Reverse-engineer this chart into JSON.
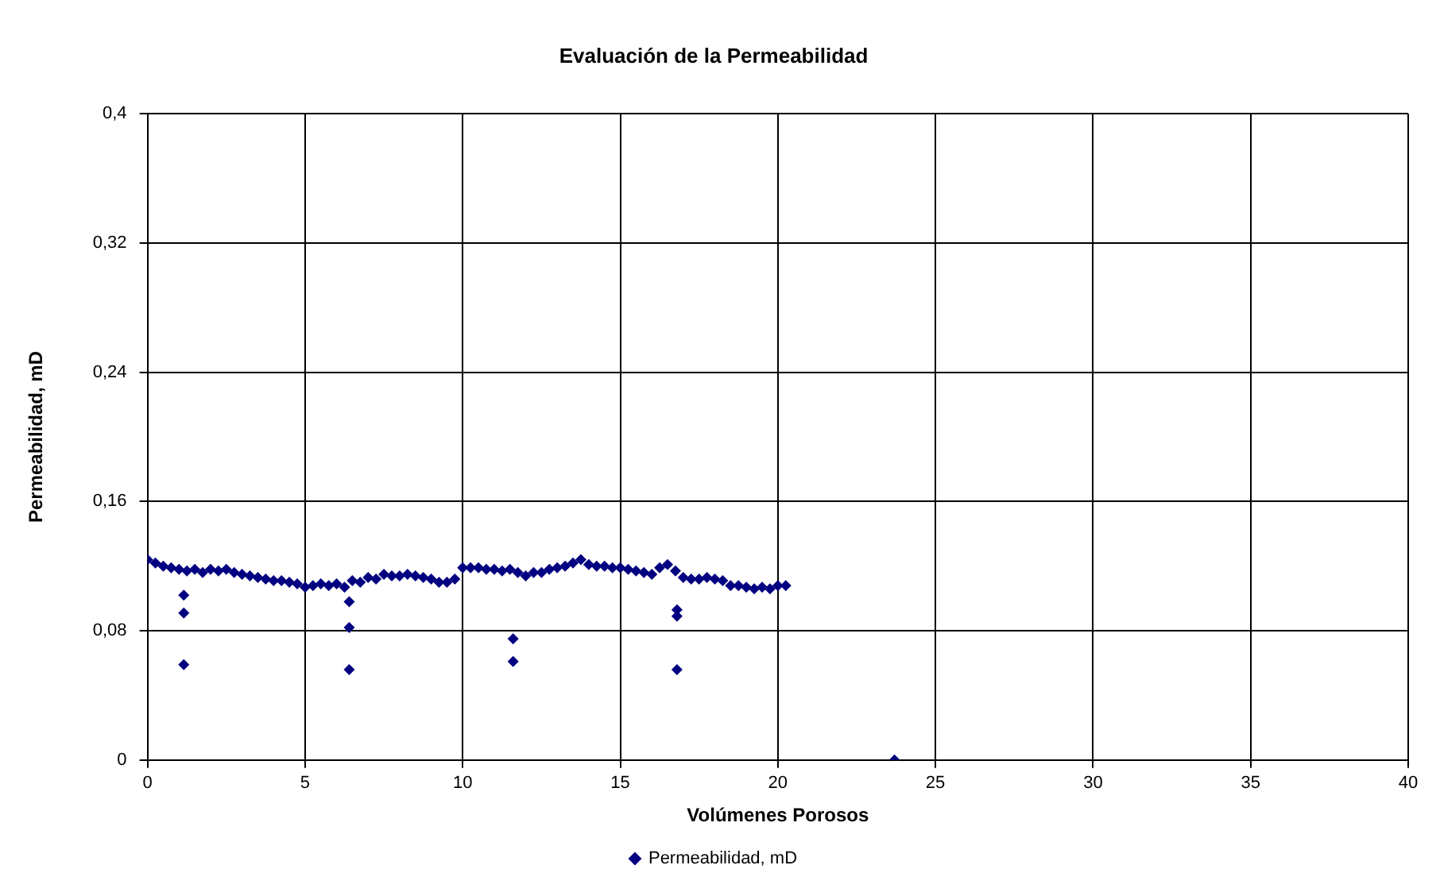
{
  "chart_data": {
    "type": "scatter",
    "title": "Evaluación de la Permeabilidad",
    "xlabel": "Volúmenes Porosos",
    "ylabel": "Permeabilidad, mD",
    "xlim": [
      0,
      40
    ],
    "xticks": [
      0,
      5,
      10,
      15,
      20,
      25,
      30,
      35,
      40
    ],
    "ylim": [
      0,
      0.4
    ],
    "yticks": [
      {
        "value": 0,
        "label": "0"
      },
      {
        "value": 0.08,
        "label": "0,08"
      },
      {
        "value": 0.16,
        "label": "0,16"
      },
      {
        "value": 0.24,
        "label": "0,24"
      },
      {
        "value": 0.32,
        "label": "0,32"
      },
      {
        "value": 0.4,
        "label": "0,4"
      }
    ],
    "grid": true,
    "legend": "bottom",
    "marker": "diamond",
    "series": [
      {
        "name": "Permeabilidad, mD",
        "color": "#000080",
        "x": [
          0,
          0.25,
          0.5,
          0.75,
          1,
          1.25,
          1.5,
          1.75,
          2,
          2.25,
          2.5,
          2.75,
          3,
          3.25,
          3.5,
          3.75,
          4,
          4.25,
          4.5,
          4.75,
          5,
          5.25,
          5.5,
          5.75,
          6,
          6.25,
          6.5,
          6.75,
          7,
          7.25,
          7.5,
          7.75,
          8,
          8.25,
          8.5,
          8.75,
          9,
          9.25,
          9.5,
          9.75,
          10,
          10.25,
          10.5,
          10.75,
          11,
          11.25,
          11.5,
          11.75,
          12,
          12.25,
          12.5,
          12.75,
          13,
          13.25,
          13.5,
          13.75,
          14,
          14.25,
          14.5,
          14.75,
          15,
          15.25,
          15.5,
          15.75,
          16,
          16.25,
          16.5,
          16.75,
          17,
          17.25,
          17.5,
          17.75,
          18,
          18.25,
          18.5,
          18.75,
          19,
          19.25,
          19.5,
          19.75,
          20,
          20.25,
          1.15,
          1.15,
          1.15,
          6.4,
          6.4,
          6.4,
          11.6,
          11.6,
          16.8,
          16.8,
          16.8,
          23.7
        ],
        "values": [
          0.124,
          0.122,
          0.12,
          0.119,
          0.118,
          0.117,
          0.118,
          0.116,
          0.118,
          0.117,
          0.118,
          0.116,
          0.115,
          0.114,
          0.113,
          0.112,
          0.111,
          0.111,
          0.11,
          0.109,
          0.107,
          0.108,
          0.109,
          0.108,
          0.109,
          0.107,
          0.111,
          0.11,
          0.113,
          0.112,
          0.115,
          0.114,
          0.114,
          0.115,
          0.114,
          0.113,
          0.112,
          0.11,
          0.11,
          0.112,
          0.119,
          0.119,
          0.119,
          0.118,
          0.118,
          0.117,
          0.118,
          0.116,
          0.114,
          0.116,
          0.116,
          0.118,
          0.119,
          0.12,
          0.122,
          0.124,
          0.121,
          0.12,
          0.12,
          0.119,
          0.119,
          0.118,
          0.117,
          0.116,
          0.115,
          0.119,
          0.121,
          0.117,
          0.113,
          0.112,
          0.112,
          0.113,
          0.112,
          0.111,
          0.108,
          0.108,
          0.107,
          0.106,
          0.107,
          0.106,
          0.108,
          0.108,
          0.102,
          0.091,
          0.059,
          0.098,
          0.082,
          0.056,
          0.075,
          0.061,
          0.093,
          0.089,
          0.056,
          0
        ]
      }
    ]
  }
}
